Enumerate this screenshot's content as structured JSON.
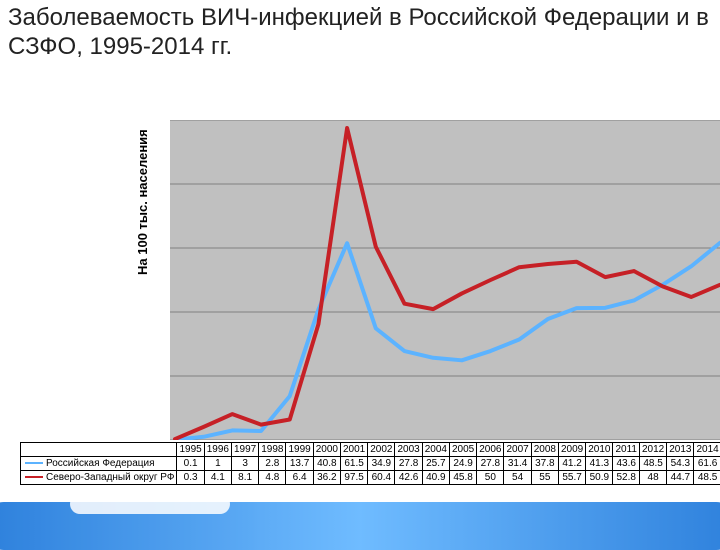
{
  "title": "Заболеваемость ВИЧ-инфекцией в Российской Федерации и в СЗФО, 1995-2014 гг.",
  "y_axis_label": "На 100 тыс. населения",
  "years": [
    "1995",
    "1996",
    "1997",
    "1998",
    "1999",
    "2000",
    "2001",
    "2002",
    "2003",
    "2004",
    "2005",
    "2006",
    "2007",
    "2008",
    "2009",
    "2010",
    "2011",
    "2012",
    "2013",
    "2014"
  ],
  "series": [
    {
      "name": "Российская Федерация",
      "color": "#5cb3ff",
      "width": 4,
      "values": [
        0.1,
        1,
        3,
        2.8,
        13.7,
        40.8,
        61.5,
        34.9,
        27.8,
        25.7,
        24.9,
        27.8,
        31.4,
        37.8,
        41.2,
        41.3,
        43.6,
        48.5,
        54.3,
        61.6
      ]
    },
    {
      "name": "Северо-Западный округ РФ",
      "color": "#c62026",
      "width": 4,
      "values": [
        0.3,
        4.1,
        8.1,
        4.8,
        6.4,
        36.2,
        97.5,
        60.4,
        42.6,
        40.9,
        45.8,
        50,
        54,
        55,
        55.7,
        50.9,
        52.8,
        48,
        44.7,
        48.5
      ]
    }
  ],
  "y": {
    "min": 0,
    "max": 100,
    "step": 20
  },
  "plot_bg": "#c0c0c0",
  "grid_color": "#808080"
}
